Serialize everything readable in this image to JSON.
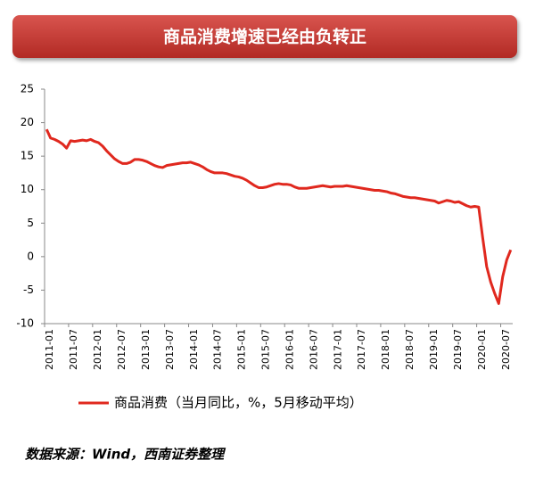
{
  "chart_data": {
    "type": "line",
    "title": "商品消费增速已经由负转正",
    "source": "数据来源：Wind，西南证券整理",
    "legend": "bottom",
    "grid": false,
    "categories": [
      "2011-01",
      null,
      null,
      null,
      null,
      null,
      "2011-07",
      null,
      null,
      null,
      null,
      null,
      "2012-01",
      null,
      null,
      null,
      null,
      null,
      "2012-07",
      null,
      null,
      null,
      null,
      null,
      "2013-01",
      null,
      null,
      null,
      null,
      null,
      "2013-07",
      null,
      null,
      null,
      null,
      null,
      "2014-01",
      null,
      null,
      null,
      null,
      null,
      "2014-07",
      null,
      null,
      null,
      null,
      null,
      "2015-01",
      null,
      null,
      null,
      null,
      null,
      "2015-07",
      null,
      null,
      null,
      null,
      null,
      "2016-01",
      null,
      null,
      null,
      null,
      null,
      "2016-07",
      null,
      null,
      null,
      null,
      null,
      "2017-01",
      null,
      null,
      null,
      null,
      null,
      "2017-07",
      null,
      null,
      null,
      null,
      null,
      "2018-01",
      null,
      null,
      null,
      null,
      null,
      "2018-07",
      null,
      null,
      null,
      null,
      null,
      "2019-01",
      null,
      null,
      null,
      null,
      null,
      "2019-07",
      null,
      null,
      null,
      null,
      null,
      "2020-01",
      null,
      null,
      null,
      null,
      null,
      "2020-07",
      null,
      null
    ],
    "series": [
      {
        "name": "商品消费（当月同比，%，5月移动平均）",
        "color": "#e0281e",
        "values": [
          19.0,
          17.7,
          17.5,
          17.2,
          16.8,
          16.2,
          17.3,
          17.2,
          17.3,
          17.4,
          17.3,
          17.5,
          17.2,
          17.0,
          16.5,
          15.8,
          15.2,
          14.6,
          14.2,
          13.9,
          13.9,
          14.1,
          14.5,
          14.5,
          14.4,
          14.2,
          13.9,
          13.6,
          13.4,
          13.3,
          13.6,
          13.7,
          13.8,
          13.9,
          14.0,
          14.0,
          14.1,
          13.9,
          13.7,
          13.4,
          13.0,
          12.7,
          12.5,
          12.5,
          12.5,
          12.4,
          12.2,
          12.0,
          11.9,
          11.7,
          11.4,
          11.0,
          10.6,
          10.3,
          10.3,
          10.4,
          10.6,
          10.8,
          10.9,
          10.8,
          10.8,
          10.7,
          10.4,
          10.2,
          10.2,
          10.2,
          10.3,
          10.4,
          10.5,
          10.6,
          10.5,
          10.4,
          10.5,
          10.5,
          10.5,
          10.6,
          10.5,
          10.4,
          10.3,
          10.2,
          10.1,
          10.0,
          9.9,
          9.9,
          9.8,
          9.7,
          9.5,
          9.4,
          9.2,
          9.0,
          8.9,
          8.8,
          8.8,
          8.7,
          8.6,
          8.5,
          8.4,
          8.3,
          8.0,
          8.2,
          8.4,
          8.3,
          8.1,
          8.2,
          7.9,
          7.6,
          7.4,
          7.5,
          7.4,
          2.8,
          -1.5,
          -3.8,
          -5.5,
          -7.0,
          -3.0,
          -0.5,
          1.0
        ]
      }
    ],
    "ylim": [
      -10,
      25
    ],
    "yticks": [
      -10,
      -5,
      0,
      5,
      10,
      15,
      20,
      25
    ]
  }
}
